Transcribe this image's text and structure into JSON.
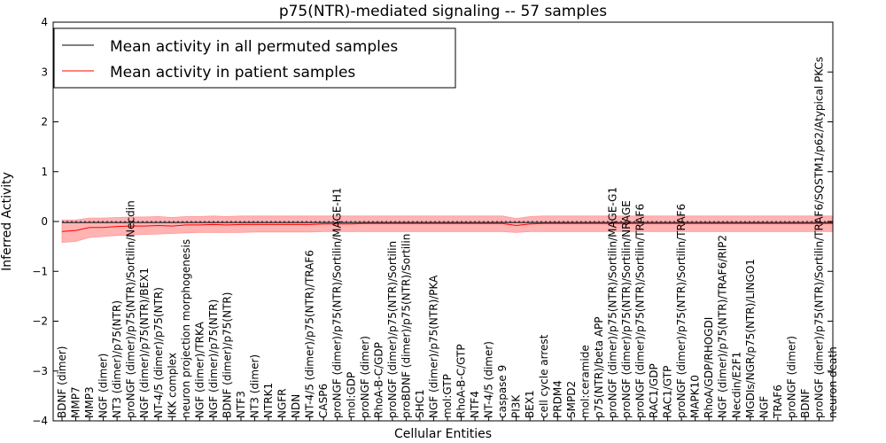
{
  "chart_data": {
    "type": "line",
    "title": "p75(NTR)-mediated signaling -- 57 samples",
    "xlabel": "Cellular Entities",
    "ylabel": "Inferred Activity",
    "ylim": [
      -4,
      4
    ],
    "yticks": [
      "−4",
      "−3",
      "−2",
      "−1",
      "0",
      "1",
      "2",
      "3",
      "4"
    ],
    "grid": false,
    "legend_position": "top-left",
    "colors": {
      "permuted": "#000000",
      "patient": "#ff0000",
      "band": "#ff9999",
      "zero_line": "#1f3f7f"
    },
    "categories": [
      "BDNF (dimer)",
      "MMP7",
      "MMP3",
      "NGF (dimer)",
      "NT3 (dimer)/p75(NTR)",
      "proNGF (dimer)/p75(NTR)/Sortilin/Necdin",
      "NGF (dimer)/p75(NTR)/BEX1",
      "NT-4/5 (dimer)/p75(NTR)",
      "IKK complex",
      "neuron projection morphogenesis",
      "NGF (dimer)/TRKA",
      "NGF (dimer)/p75(NTR)",
      "BDNF (dimer)/p75(NTR)",
      "NTF3",
      "NT3 (dimer)",
      "NTRK1",
      "NGFR",
      "NDN",
      "NT-4/5 (dimer)/p75(NTR)/TRAF6",
      "CASP6",
      "proNGF (dimer)/p75(NTR)/Sortilin/MAGE-H1",
      "mol:GDP",
      "proNGF (dimer)",
      "RhoA-B-C/GDP",
      "proNGF (dimer)/p75(NTR)/Sortilin",
      "proBDNF (dimer)/p75(NTR)/Sortilin",
      "SHC1",
      "NGF (dimer)/p75(NTR)/PKA",
      "mol:GTP",
      "RhoA-B-C/GTP",
      "NTF4",
      "NT-4/5 (dimer)",
      "caspase 9",
      "PI3K",
      "BEX1",
      "cell cycle arrest",
      "PRDM4",
      "SMPD2",
      "mol:ceramide",
      "p75(NTR)/beta APP",
      "proNGF (dimer)/p75(NTR)/Sortilin/MAGE-G1",
      "proNGF (dimer)/p75(NTR)/Sortilin/NRAGE",
      "proNGF (dimer)/p75(NTR)/Sortilin/TRAF6",
      "RAC1/GDP",
      "RAC1/GTP",
      "proNGF (dimer)/p75(NTR)/Sortilin/TRAF6",
      "MAPK10",
      "RhoA/GDP/RHOGDI",
      "NGF (dimer)/p75(NTR)/TRAF6/RIP2",
      "Necdin/E2F1",
      "MGDIs/NGR/p75(NTR)/LINGO1",
      "NGF",
      "TRAF6",
      "proNGF (dimer)",
      "BDNF",
      "proNGF (dimer)/p75(NTR)/Sortilin/TRAF6/SQSTM1/p62/Atypical PKCs",
      "neuron death"
    ],
    "series": [
      {
        "name": "Mean activity in all permuted samples",
        "values": [
          -0.02,
          -0.02,
          -0.02,
          -0.02,
          -0.02,
          -0.02,
          -0.02,
          -0.02,
          -0.02,
          -0.02,
          -0.02,
          -0.02,
          -0.02,
          -0.02,
          -0.02,
          -0.02,
          -0.02,
          -0.02,
          -0.02,
          -0.02,
          -0.02,
          -0.02,
          -0.02,
          -0.02,
          -0.02,
          -0.02,
          -0.02,
          -0.02,
          -0.02,
          -0.02,
          -0.02,
          -0.02,
          -0.02,
          -0.02,
          -0.02,
          -0.02,
          -0.02,
          -0.02,
          -0.02,
          -0.02,
          -0.02,
          -0.02,
          -0.02,
          -0.02,
          -0.02,
          -0.02,
          -0.02,
          -0.02,
          -0.02,
          -0.02,
          -0.02,
          -0.02,
          -0.02,
          -0.02,
          -0.02,
          -0.02,
          -0.02
        ]
      },
      {
        "name": "Mean activity in patient samples",
        "values": [
          -0.2,
          -0.18,
          -0.12,
          -0.12,
          -0.1,
          -0.09,
          -0.09,
          -0.08,
          -0.09,
          -0.07,
          -0.07,
          -0.06,
          -0.07,
          -0.06,
          -0.06,
          -0.06,
          -0.06,
          -0.06,
          -0.06,
          -0.05,
          -0.05,
          -0.05,
          -0.04,
          -0.04,
          -0.04,
          -0.04,
          -0.04,
          -0.04,
          -0.04,
          -0.04,
          -0.04,
          -0.04,
          -0.04,
          -0.08,
          -0.05,
          -0.04,
          -0.04,
          -0.04,
          -0.04,
          -0.04,
          -0.04,
          -0.04,
          -0.04,
          -0.04,
          -0.04,
          -0.04,
          -0.04,
          -0.04,
          -0.04,
          -0.04,
          -0.04,
          -0.04,
          -0.04,
          -0.04,
          -0.04,
          -0.04,
          -0.04
        ],
        "band_low": [
          -0.42,
          -0.4,
          -0.32,
          -0.3,
          -0.28,
          -0.27,
          -0.26,
          -0.25,
          -0.24,
          -0.23,
          -0.22,
          -0.22,
          -0.22,
          -0.22,
          -0.21,
          -0.21,
          -0.21,
          -0.21,
          -0.21,
          -0.2,
          -0.2,
          -0.2,
          -0.2,
          -0.2,
          -0.2,
          -0.2,
          -0.2,
          -0.2,
          -0.2,
          -0.2,
          -0.2,
          -0.2,
          -0.2,
          -0.22,
          -0.2,
          -0.2,
          -0.2,
          -0.2,
          -0.2,
          -0.2,
          -0.2,
          -0.2,
          -0.2,
          -0.2,
          -0.2,
          -0.2,
          -0.2,
          -0.2,
          -0.2,
          -0.2,
          -0.2,
          -0.2,
          -0.2,
          -0.2,
          -0.2,
          -0.2,
          -0.2
        ],
        "band_high": [
          0.03,
          0.03,
          0.07,
          0.07,
          0.08,
          0.09,
          0.09,
          0.1,
          0.08,
          0.1,
          0.1,
          0.11,
          0.1,
          0.11,
          0.11,
          0.11,
          0.11,
          0.11,
          0.11,
          0.11,
          0.11,
          0.11,
          0.11,
          0.11,
          0.11,
          0.11,
          0.11,
          0.11,
          0.11,
          0.11,
          0.11,
          0.11,
          0.11,
          0.06,
          0.1,
          0.11,
          0.11,
          0.11,
          0.11,
          0.11,
          0.11,
          0.11,
          0.11,
          0.11,
          0.11,
          0.11,
          0.11,
          0.11,
          0.11,
          0.11,
          0.11,
          0.11,
          0.11,
          0.11,
          0.11,
          0.11,
          0.11
        ]
      }
    ]
  }
}
